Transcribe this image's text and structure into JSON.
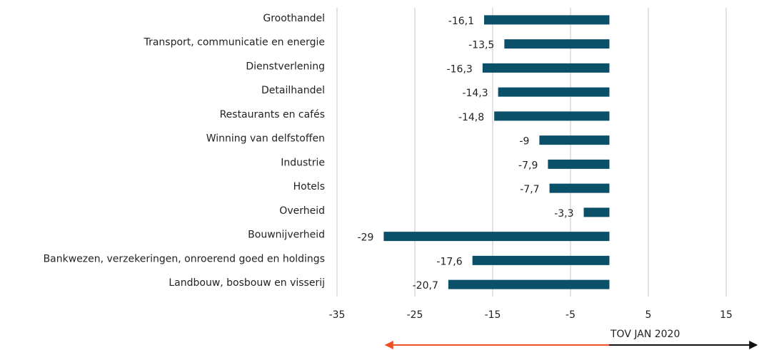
{
  "chart_data": {
    "type": "bar",
    "orientation": "horizontal",
    "categories": [
      "Groothandel",
      "Transport, communicatie en energie",
      "Dienstverlening",
      "Detailhandel",
      "Restaurants en cafés",
      "Winning van delfstoffen",
      "Industrie",
      "Hotels",
      "Overheid",
      "Bouwnijverheid",
      "Bankwezen, verzekeringen, onroerend goed en holdings",
      "Landbouw, bosbouw en visserij"
    ],
    "values": [
      -16.1,
      -13.5,
      -16.3,
      -14.3,
      -14.8,
      -9,
      -7.9,
      -7.7,
      -3.3,
      -29,
      -17.6,
      -20.7
    ],
    "value_labels": [
      "-16,1",
      "-13,5",
      "-16,3",
      "-14,3",
      "-14,8",
      "-9",
      "-7,9",
      "-7,7",
      "-3,3",
      "-29",
      "-17,6",
      "-20,7"
    ],
    "color": "#0b5069",
    "xlim": [
      -35,
      15
    ],
    "xticks": [
      -35,
      -25,
      -15,
      -5,
      5,
      15
    ],
    "grid": true,
    "annotation": "TOV JAN 2020"
  }
}
